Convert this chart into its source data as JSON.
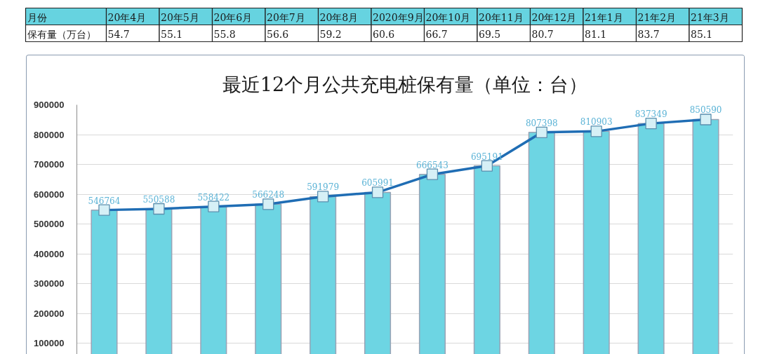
{
  "chart_data": [
    {
      "type": "other",
      "xlabel": "月份",
      "ylabel": "保有量（万台）",
      "categories": [
        "20年4月",
        "20年5月",
        "20年6月",
        "20年7月",
        "20年8月",
        "2020年9月",
        "20年10月",
        "20年11月",
        "20年12月",
        "21年1月",
        "21年2月",
        "21年3月"
      ],
      "values": [
        54.7,
        55.1,
        55.8,
        56.6,
        59.2,
        60.6,
        66.7,
        69.5,
        80.7,
        81.1,
        83.7,
        85.1
      ],
      "data_labels": true
    },
    {
      "type": "bar",
      "title": "最近12个月公共充电桩保有量（单位：台）",
      "categories": [
        null,
        null,
        null,
        null,
        null,
        null,
        null,
        null,
        null,
        null,
        null,
        null
      ],
      "ylim": [
        60000,
        900000
      ],
      "yticks": [
        100000,
        200000,
        300000,
        400000,
        500000,
        600000,
        700000,
        800000,
        900000
      ],
      "grid": "y",
      "tick_labels": "y",
      "series": [
        {
          "type": "bar",
          "color": "#6dd5e3",
          "values": [
            546764,
            550588,
            558422,
            566248,
            591979,
            605991,
            666543,
            695191,
            807398,
            810903,
            837349,
            850590
          ]
        },
        {
          "type": "line",
          "color": "#1f6db4",
          "marker": "square",
          "data_labels": true,
          "values": [
            546764,
            550588,
            558422,
            566248,
            591979,
            605991,
            666543,
            695191,
            807398,
            810903,
            837349,
            850590
          ]
        }
      ]
    }
  ]
}
